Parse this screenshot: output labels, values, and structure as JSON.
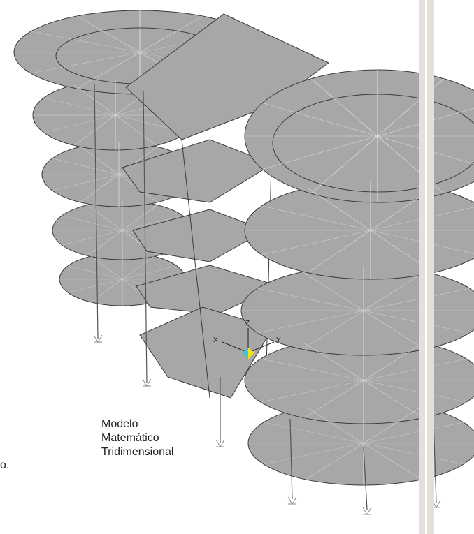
{
  "caption": {
    "line1": "Modelo",
    "line2": "Matemático",
    "line3": "Tridimensional"
  },
  "cut_text": "o.",
  "axes_labels": {
    "x": "X",
    "y": "Y",
    "z": "Z"
  },
  "colors": {
    "slab_fill": "#a7a7a7",
    "slab_edge": "#8a8a8a",
    "line": "#3a3a3a",
    "radial": "#d8d8d8",
    "divider": "#e3e0d8",
    "axis_cyan": "#39c6d8",
    "axis_yellow": "#f2df1e"
  }
}
